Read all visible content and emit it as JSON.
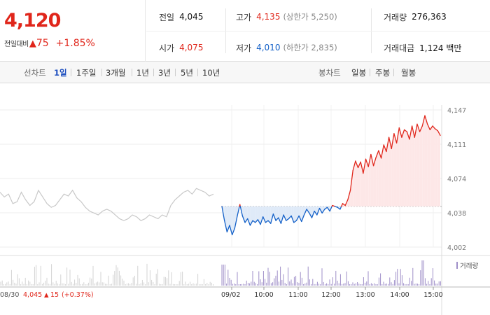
{
  "quote": {
    "price": "4,120",
    "change_label": "전일대비",
    "change_arrow": "▲",
    "change": "75",
    "change_rate": "+1.85%"
  },
  "stats": {
    "prev_close": {
      "label": "전일",
      "value": "4,045"
    },
    "open": {
      "label": "시가",
      "value": "4,075"
    },
    "high": {
      "label": "고가",
      "value": "4,135",
      "sub": "(상한가 5,250)"
    },
    "low": {
      "label": "저가",
      "value": "4,010",
      "sub": "(하한가 2,835)"
    },
    "volume": {
      "label": "거래량",
      "value": "276,363"
    },
    "amount": {
      "label": "거래대금",
      "value": "1,124 백만"
    }
  },
  "toolbar": {
    "line_label": "선차트",
    "line_periods": [
      "1일",
      "1주일",
      "3개월",
      "1년",
      "3년",
      "5년",
      "10년"
    ],
    "active_period": "1일",
    "candle_label": "봉차트",
    "candle_periods": [
      "일봉",
      "주봉",
      "월봉"
    ]
  },
  "colors": {
    "up": "#e0261b",
    "down": "#1360c8",
    "prev_day": "#c8c8c8",
    "up_fill": "#fde7e7",
    "down_fill": "#dfeaf8",
    "volume": "#9f8fc8"
  },
  "chart_data": {
    "type": "line",
    "ylim": [
      4002,
      4147
    ],
    "y_ticks": [
      "4,147",
      "4,111",
      "4,074",
      "4,038",
      "4,002"
    ],
    "x_ticks": [
      "09/02",
      "10:00",
      "11:00",
      "12:00",
      "13:00",
      "14:00",
      "15:00"
    ],
    "baseline": 4045,
    "legend": "거래량",
    "prev_day_label": "08/30",
    "prev_day_close": "4,045",
    "prev_day_arrow": "▲",
    "prev_day_change": "15",
    "prev_day_rate": "(+0.37%)",
    "prev_day_series": [
      4060,
      4055,
      4058,
      4048,
      4050,
      4060,
      4052,
      4046,
      4050,
      4062,
      4055,
      4048,
      4044,
      4046,
      4052,
      4058,
      4056,
      4062,
      4054,
      4050,
      4044,
      4040,
      4038,
      4036,
      4040,
      4042,
      4040,
      4036,
      4032,
      4030,
      4032,
      4036,
      4034,
      4030,
      4032,
      4036,
      4034,
      4032,
      4036,
      4034,
      4046,
      4052,
      4056,
      4060,
      4062,
      4058,
      4064,
      4062,
      4060,
      4056,
      4058
    ],
    "today_series": [
      4045,
      4030,
      4018,
      4025,
      4015,
      4022,
      4035,
      4047,
      4035,
      4028,
      4032,
      4025,
      4030,
      4028,
      4031,
      4026,
      4034,
      4028,
      4030,
      4027,
      4037,
      4030,
      4033,
      4027,
      4036,
      4030,
      4032,
      4035,
      4028,
      4030,
      4035,
      4029,
      4036,
      4042,
      4038,
      4033,
      4040,
      4036,
      4043,
      4038,
      4042,
      4044,
      4040,
      4046,
      4045,
      4044,
      4042,
      4048,
      4046,
      4052,
      4062,
      4083,
      4093,
      4086,
      4092,
      4080,
      4095,
      4087,
      4100,
      4088,
      4097,
      4104,
      4096,
      4110,
      4103,
      4118,
      4106,
      4122,
      4112,
      4128,
      4118,
      4126,
      4124,
      4116,
      4130,
      4118,
      4132,
      4124,
      4130,
      4141,
      4132,
      4126,
      4130,
      4127,
      4125,
      4120
    ]
  }
}
